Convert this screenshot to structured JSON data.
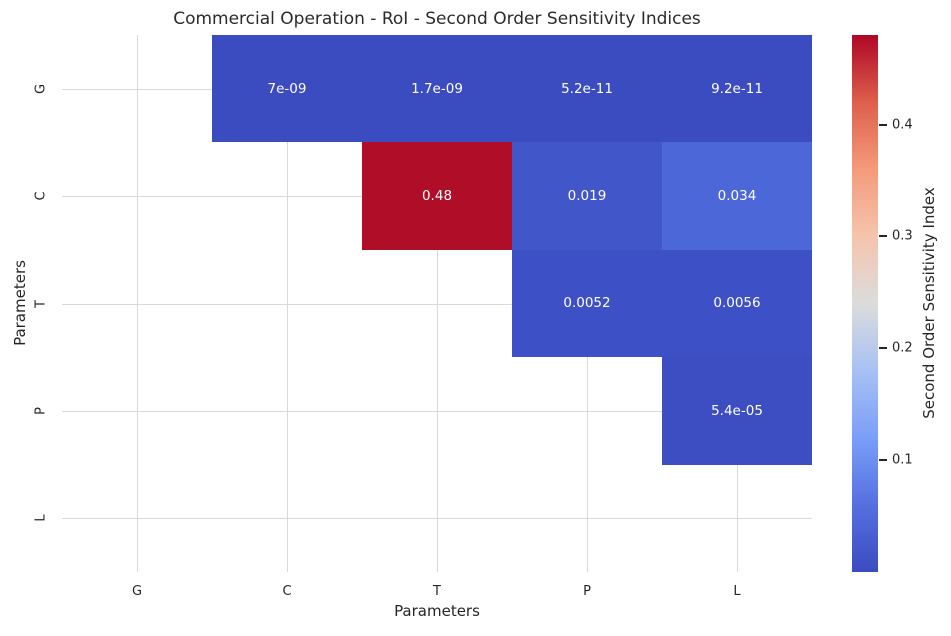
{
  "chart_data": {
    "type": "heatmap",
    "title": "Commercial Operation - RoI - Second Order Sensitivity Indices",
    "xlabel": "Parameters",
    "ylabel": "Parameters",
    "categories": [
      "G",
      "C",
      "T",
      "P",
      "L"
    ],
    "mask": "lower-triangle-and-diagonal-hidden",
    "grid": true,
    "gridline_color": "#d9d9d9",
    "annotation_text_color": "#ffffff",
    "cells": [
      {
        "row": "G",
        "col": "C",
        "value": 7e-09,
        "label": "7e-09",
        "color": "#3b4cc0"
      },
      {
        "row": "G",
        "col": "T",
        "value": 1.7e-09,
        "label": "1.7e-09",
        "color": "#3b4cc0"
      },
      {
        "row": "G",
        "col": "P",
        "value": 5.2e-11,
        "label": "5.2e-11",
        "color": "#3b4cc0"
      },
      {
        "row": "G",
        "col": "L",
        "value": 9.2e-11,
        "label": "9.2e-11",
        "color": "#3b4cc0"
      },
      {
        "row": "C",
        "col": "T",
        "value": 0.48,
        "label": "0.48",
        "color": "#b00d28"
      },
      {
        "row": "C",
        "col": "P",
        "value": 0.019,
        "label": "0.019",
        "color": "#4156c8"
      },
      {
        "row": "C",
        "col": "L",
        "value": 0.034,
        "label": "0.034",
        "color": "#4c67d7"
      },
      {
        "row": "T",
        "col": "P",
        "value": 0.0052,
        "label": "0.0052",
        "color": "#3e50c5"
      },
      {
        "row": "T",
        "col": "L",
        "value": 0.0056,
        "label": "0.0056",
        "color": "#3e50c5"
      },
      {
        "row": "P",
        "col": "L",
        "value": 5.4e-05,
        "label": "5.4e-05",
        "color": "#3c4ec2"
      }
    ],
    "colorbar": {
      "label": "Second Order Sensitivity Index",
      "ticks": [
        0.4,
        0.3,
        0.2,
        0.1
      ],
      "vmin": 0,
      "vmax": 0.48,
      "colormap": "coolwarm",
      "gradient_stops": [
        {
          "pos": 0,
          "color": "#b00626"
        },
        {
          "pos": 0.125,
          "color": "#dd604c"
        },
        {
          "pos": 0.25,
          "color": "#f49a7b"
        },
        {
          "pos": 0.375,
          "color": "#f5c4ac"
        },
        {
          "pos": 0.5,
          "color": "#dcdcdc"
        },
        {
          "pos": 0.625,
          "color": "#a7c1f4"
        },
        {
          "pos": 0.75,
          "color": "#7b9ef9"
        },
        {
          "pos": 0.875,
          "color": "#5570e0"
        },
        {
          "pos": 1,
          "color": "#3b4cc0"
        }
      ]
    }
  }
}
